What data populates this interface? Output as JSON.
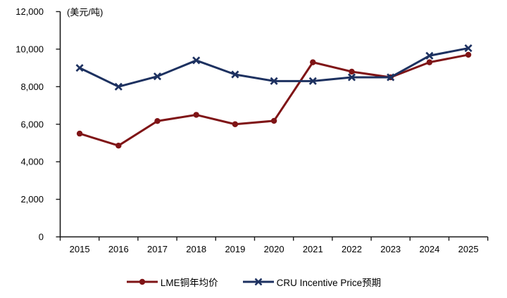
{
  "chart_data": {
    "type": "line",
    "unit_label": "(美元/吨)",
    "categories": [
      "2015",
      "2016",
      "2017",
      "2018",
      "2019",
      "2020",
      "2021",
      "2022",
      "2023",
      "2024",
      "2025"
    ],
    "y_axis": {
      "min": 0,
      "max": 12000,
      "tick_step": 2000,
      "tick_labels": [
        "0",
        "2,000",
        "4,000",
        "6,000",
        "8,000",
        "10,000",
        "12,000"
      ]
    },
    "grid": "off",
    "legend_position": "bottom-center",
    "series": [
      {
        "name": "LME铜年均价",
        "color": "#7F1416",
        "marker": "circle",
        "values": [
          5500,
          4860,
          6170,
          6500,
          6000,
          6180,
          9300,
          8800,
          8500,
          9300,
          9700
        ]
      },
      {
        "name": "CRU Incentive Price预期",
        "color": "#1D3160",
        "marker": "x",
        "values": [
          9000,
          8000,
          8550,
          9400,
          8650,
          8300,
          8300,
          8500,
          8500,
          9650,
          10050
        ]
      }
    ],
    "axis_color": "#1a1a1a",
    "text_color": "#000000"
  }
}
